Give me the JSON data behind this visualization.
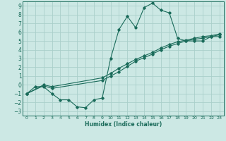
{
  "xlabel": "Humidex (Indice chaleur)",
  "bg_color": "#cce8e4",
  "grid_color": "#aacfca",
  "line_color": "#1a6b5a",
  "xlim": [
    -0.5,
    23.5
  ],
  "ylim": [
    -3.5,
    9.5
  ],
  "xticks": [
    0,
    1,
    2,
    3,
    4,
    5,
    6,
    7,
    8,
    9,
    10,
    11,
    12,
    13,
    14,
    15,
    16,
    17,
    18,
    19,
    20,
    21,
    22,
    23
  ],
  "yticks": [
    -3,
    -2,
    -1,
    0,
    1,
    2,
    3,
    4,
    5,
    6,
    7,
    8,
    9
  ],
  "series1_x": [
    0,
    1,
    2,
    3,
    4,
    5,
    6,
    7,
    8,
    9,
    10,
    11,
    12,
    13,
    14,
    15,
    16,
    17,
    18,
    19,
    20,
    21,
    22,
    23
  ],
  "series1_y": [
    -1.0,
    -0.2,
    -0.2,
    -1.0,
    -1.7,
    -1.7,
    -2.5,
    -2.6,
    -1.7,
    -1.5,
    3.0,
    6.3,
    7.8,
    6.5,
    8.8,
    9.3,
    8.5,
    8.2,
    5.3,
    5.0,
    5.0,
    5.0,
    5.5,
    5.5
  ],
  "series2_x": [
    0,
    2,
    3,
    9,
    10,
    11,
    12,
    13,
    14,
    15,
    16,
    17,
    18,
    19,
    20,
    21,
    22,
    23
  ],
  "series2_y": [
    -1.0,
    -0.1,
    -0.4,
    0.5,
    1.0,
    1.5,
    2.1,
    2.7,
    3.1,
    3.5,
    4.0,
    4.4,
    4.7,
    5.0,
    5.2,
    5.3,
    5.5,
    5.7
  ],
  "series3_x": [
    0,
    2,
    3,
    9,
    10,
    11,
    12,
    13,
    14,
    15,
    16,
    17,
    18,
    19,
    20,
    21,
    22,
    23
  ],
  "series3_y": [
    -1.0,
    0.0,
    -0.2,
    0.8,
    1.3,
    1.9,
    2.4,
    2.9,
    3.3,
    3.7,
    4.2,
    4.6,
    4.9,
    5.1,
    5.3,
    5.5,
    5.6,
    5.8
  ]
}
